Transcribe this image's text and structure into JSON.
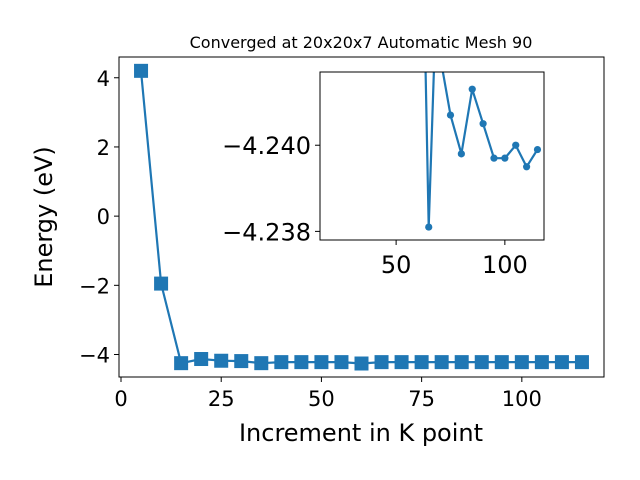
{
  "chart_data": [
    {
      "type": "line",
      "title": "Converged at 20x20x7 Automatic Mesh 90",
      "xlabel": "Increment in K point",
      "ylabel": "Energy (eV)",
      "xlim": [
        -0.5,
        120.5
      ],
      "ylim": [
        -4.65,
        4.6
      ],
      "xticks": [
        0,
        25,
        50,
        75,
        100
      ],
      "yticks": [
        4,
        2,
        0,
        -2,
        -4
      ],
      "xtick_labels": [
        "0",
        "25",
        "50",
        "75",
        "100"
      ],
      "ytick_labels": [
        "4",
        "2",
        "0",
        "−2",
        "−4"
      ],
      "marker": "square",
      "color": "#1f77b4",
      "series": [
        {
          "x": [
            5,
            10,
            15,
            20,
            25,
            30,
            35,
            40,
            45,
            50,
            55,
            60,
            65,
            70,
            75,
            80,
            85,
            90,
            95,
            100,
            105,
            110,
            115
          ],
          "y": [
            4.2,
            -1.95,
            -4.25,
            -4.13,
            -4.18,
            -4.19,
            -4.25,
            -4.22,
            -4.22,
            -4.22,
            -4.22,
            -4.26,
            -4.22,
            -4.22,
            -4.22,
            -4.22,
            -4.22,
            -4.22,
            -4.22,
            -4.22,
            -4.22,
            -4.22,
            -4.22
          ]
        }
      ]
    },
    {
      "type": "line",
      "title": "",
      "xlabel": "",
      "ylabel": "",
      "xlim": [
        15,
        118
      ],
      "ylim": [
        -4.2378,
        -4.2417
      ],
      "xticks": [
        50,
        100
      ],
      "yticks": [
        -4.24,
        -4.238
      ],
      "xtick_labels": [
        "50",
        "100"
      ],
      "ytick_labels": [
        "−4.240",
        "−4.238"
      ],
      "marker": "circle",
      "color": "#1f77b4",
      "series": [
        {
          "x": [
            63,
            65,
            68,
            75,
            80,
            85,
            90,
            95,
            100,
            105,
            110,
            115
          ],
          "y": [
            -4.2431,
            -4.2381,
            -4.2427,
            -4.2407,
            -4.2398,
            -4.2413,
            -4.2405,
            -4.2397,
            -4.2397,
            -4.24,
            -4.2395,
            -4.2399
          ]
        }
      ]
    }
  ]
}
